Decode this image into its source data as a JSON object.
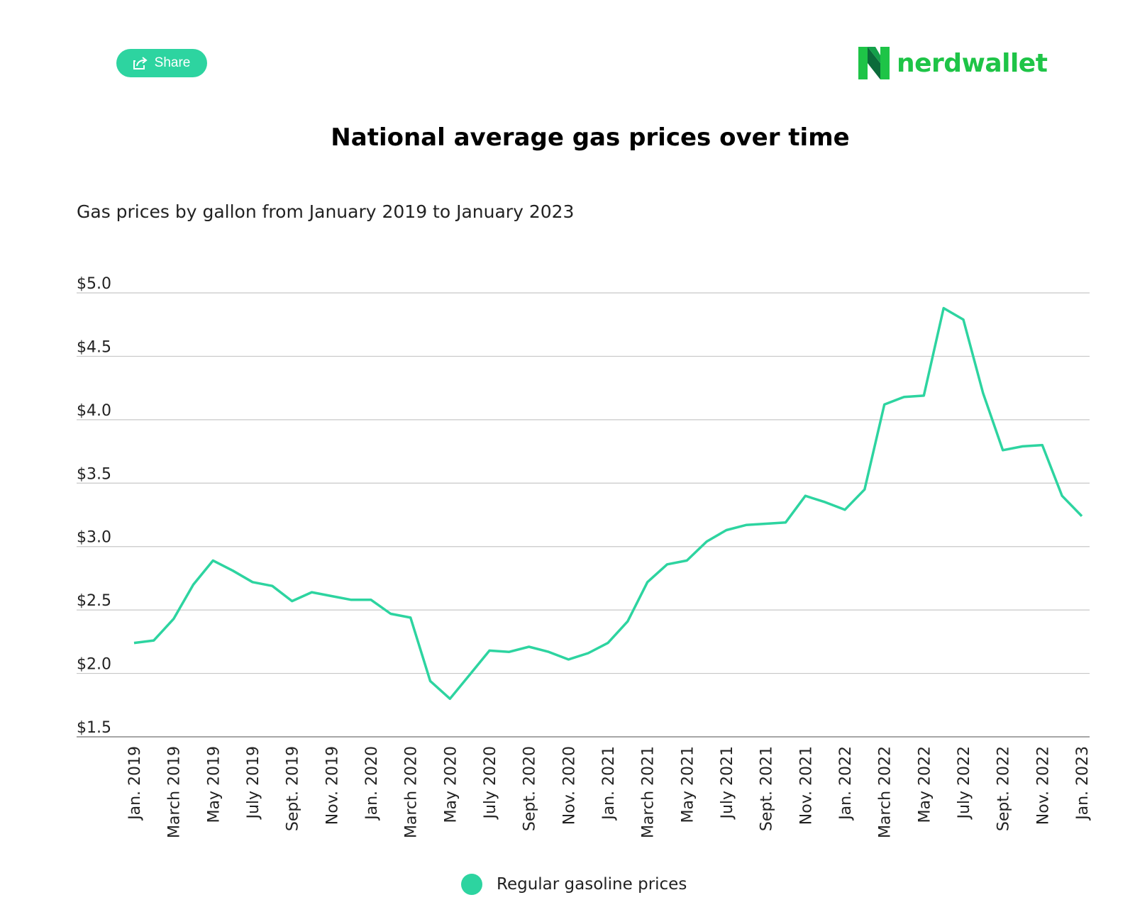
{
  "header": {
    "share_label": "Share",
    "logo_text": "nerdwallet"
  },
  "colors": {
    "accent": "#2dd4a0",
    "brand_green": "#1ec447",
    "grid": "#c8c8c8"
  },
  "chart_data": {
    "type": "line",
    "title": "National average gas prices over time",
    "subtitle": "Gas prices by gallon from January 2019 to January 2023",
    "ylim": [
      1.5,
      5.0
    ],
    "yticks": [
      "$5.0",
      "$4.5",
      "$4.0",
      "$3.5",
      "$3.0",
      "$2.5",
      "$2.0",
      "$1.5"
    ],
    "ytick_values": [
      5.0,
      4.5,
      4.0,
      3.5,
      3.0,
      2.5,
      2.0,
      1.5
    ],
    "x_tick_labels": [
      "Jan. 2019",
      "March 2019",
      "May 2019",
      "July 2019",
      "Sept. 2019",
      "Nov. 2019",
      "Jan. 2020",
      "March 2020",
      "May 2020",
      "July 2020",
      "Sept. 2020",
      "Nov. 2020",
      "Jan. 2021",
      "March 2021",
      "May 2021",
      "July 2021",
      "Sept. 2021",
      "Nov. 2021",
      "Jan. 2022",
      "March 2022",
      "May 2022",
      "July 2022",
      "Sept. 2022",
      "Nov. 2022",
      "Jan. 2023"
    ],
    "grid": true,
    "legend_position": "bottom-center",
    "series": [
      {
        "name": "Regular gasoline prices",
        "color": "#2dd4a0",
        "values": [
          2.24,
          2.26,
          2.43,
          2.7,
          2.89,
          2.81,
          2.72,
          2.69,
          2.57,
          2.64,
          2.61,
          2.58,
          2.58,
          2.47,
          2.44,
          1.94,
          1.8,
          1.99,
          2.18,
          2.17,
          2.21,
          2.17,
          2.11,
          2.16,
          2.24,
          2.41,
          2.72,
          2.86,
          2.89,
          3.04,
          3.13,
          3.17,
          3.18,
          3.19,
          3.4,
          3.35,
          3.29,
          3.45,
          4.12,
          4.18,
          4.19,
          4.88,
          4.79,
          4.21,
          3.76,
          3.79,
          3.8,
          3.4,
          3.24
        ]
      }
    ]
  }
}
